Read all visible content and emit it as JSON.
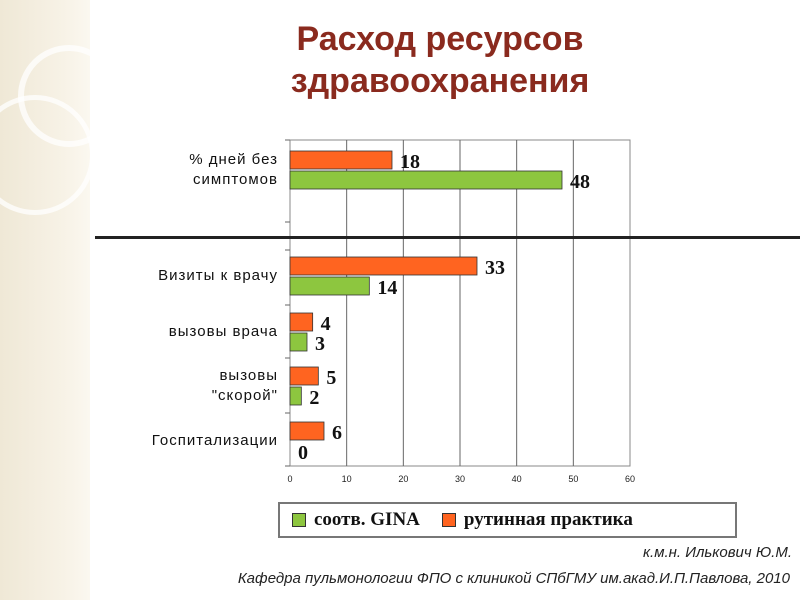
{
  "title_lines": [
    "Расход ресурсов",
    "здравоохранения"
  ],
  "colors": {
    "gina": "#8dc63f",
    "routine": "#ff6420",
    "title": "#8a2a1e"
  },
  "chart_data": {
    "type": "bar",
    "orientation": "horizontal",
    "categories": [
      "% дней без симптомов",
      "Визиты к врачу",
      "вызовы врача",
      "вызовы \"скорой\"",
      "Госпитализации"
    ],
    "category_label_lines": [
      [
        "% дней без",
        "симптомов"
      ],
      [
        "Визиты к врачу"
      ],
      [
        "вызовы врача"
      ],
      [
        "вызовы",
        "\"скорой\""
      ],
      [
        "Госпитализации"
      ]
    ],
    "series": [
      {
        "name": "рутинная практика",
        "values": [
          18,
          33,
          4,
          5,
          6
        ]
      },
      {
        "name": "соотв. GINA",
        "values": [
          48,
          14,
          3,
          2,
          0
        ]
      }
    ],
    "xlim": [
      0,
      60
    ],
    "x_ticks": [
      0,
      10,
      20,
      30,
      40,
      50,
      60
    ],
    "grid": true,
    "legend_position": "bottom"
  },
  "legend": [
    {
      "label": "соотв. GINA",
      "color": "#8dc63f"
    },
    {
      "label": "рутинная практика",
      "color": "#ff6420"
    }
  ],
  "footer": {
    "author": "к.м.н. Илькович Ю.М.",
    "department": "Кафедра пульмонологии ФПО с клиникой СПбГМУ им.акад.И.П.Павлова, 2010"
  }
}
